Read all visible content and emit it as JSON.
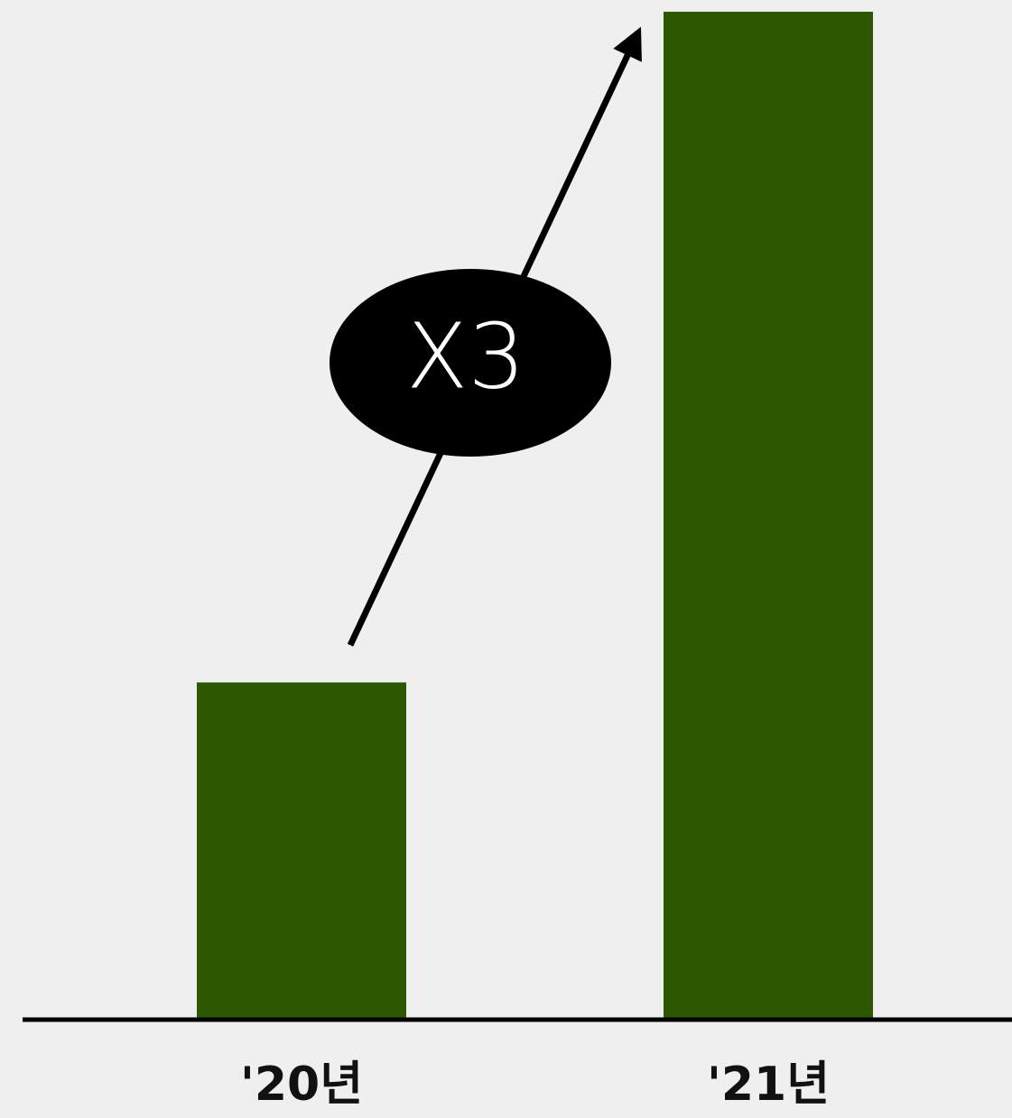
{
  "chart_data": {
    "type": "bar",
    "annotation": "X3",
    "categories": [
      "'20년",
      "'21년"
    ],
    "values": [
      1,
      3
    ],
    "color": "#2d5700",
    "ylim": [
      0,
      3
    ]
  }
}
